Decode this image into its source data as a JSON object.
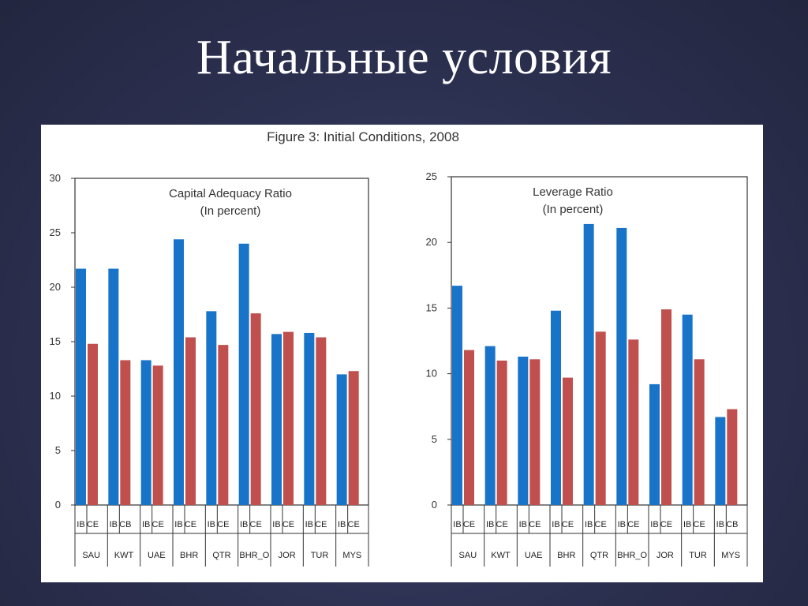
{
  "slide": {
    "title": "Начальные условия"
  },
  "figure": {
    "title": "Figure 3: Initial Conditions, 2008"
  },
  "colors": {
    "ib": "#1874c8",
    "ce": "#c0504d",
    "axis": "#333333"
  },
  "chart_data": [
    {
      "type": "bar",
      "title": "Capital Adequacy Ratio",
      "subtitle": "(In percent)",
      "categories": [
        "SAU",
        "KWT",
        "UAE",
        "BHR",
        "QTR",
        "BHR_O",
        "JOR",
        "TUR",
        "MYS"
      ],
      "sub_categories": [
        [
          "IB",
          "CE"
        ],
        [
          "IB",
          "CB"
        ],
        [
          "IB",
          "CE"
        ],
        [
          "IB",
          "CE"
        ],
        [
          "IB",
          "CE"
        ],
        [
          "IB",
          "CE"
        ],
        [
          "IB",
          "CE"
        ],
        [
          "IB",
          "CE"
        ],
        [
          "IB",
          "CE"
        ]
      ],
      "series": [
        {
          "values": [
            21.7,
            21.7,
            13.3,
            24.4,
            17.8,
            24.0,
            15.7,
            15.8,
            12.0
          ]
        },
        {
          "values": [
            14.8,
            13.3,
            12.8,
            15.4,
            14.7,
            17.6,
            15.9,
            15.4,
            12.3
          ]
        }
      ],
      "ylim": [
        0,
        30
      ],
      "yticks": [
        0,
        5,
        10,
        15,
        20,
        25,
        30
      ],
      "grid": false,
      "legend": "none"
    },
    {
      "type": "bar",
      "title": "Leverage Ratio",
      "subtitle": "(In percent)",
      "categories": [
        "SAU",
        "KWT",
        "UAE",
        "BHR",
        "QTR",
        "BHR_O",
        "JOR",
        "TUR",
        "MYS"
      ],
      "sub_categories": [
        [
          "IB",
          "CE"
        ],
        [
          "IB",
          "CE"
        ],
        [
          "IB",
          "CE"
        ],
        [
          "IB",
          "CE"
        ],
        [
          "IB",
          "CE"
        ],
        [
          "IB",
          "CE"
        ],
        [
          "IB",
          "CE"
        ],
        [
          "IB",
          "CE"
        ],
        [
          "IB",
          "CB"
        ]
      ],
      "series": [
        {
          "values": [
            16.7,
            12.1,
            11.3,
            14.8,
            21.4,
            21.1,
            9.2,
            14.5,
            6.7
          ]
        },
        {
          "values": [
            11.8,
            11.0,
            11.1,
            9.7,
            13.2,
            12.6,
            14.9,
            11.1,
            7.3
          ]
        }
      ],
      "ylim": [
        0,
        25
      ],
      "yticks": [
        0,
        5,
        10,
        15,
        20,
        25
      ],
      "grid": false,
      "legend": "none"
    }
  ]
}
